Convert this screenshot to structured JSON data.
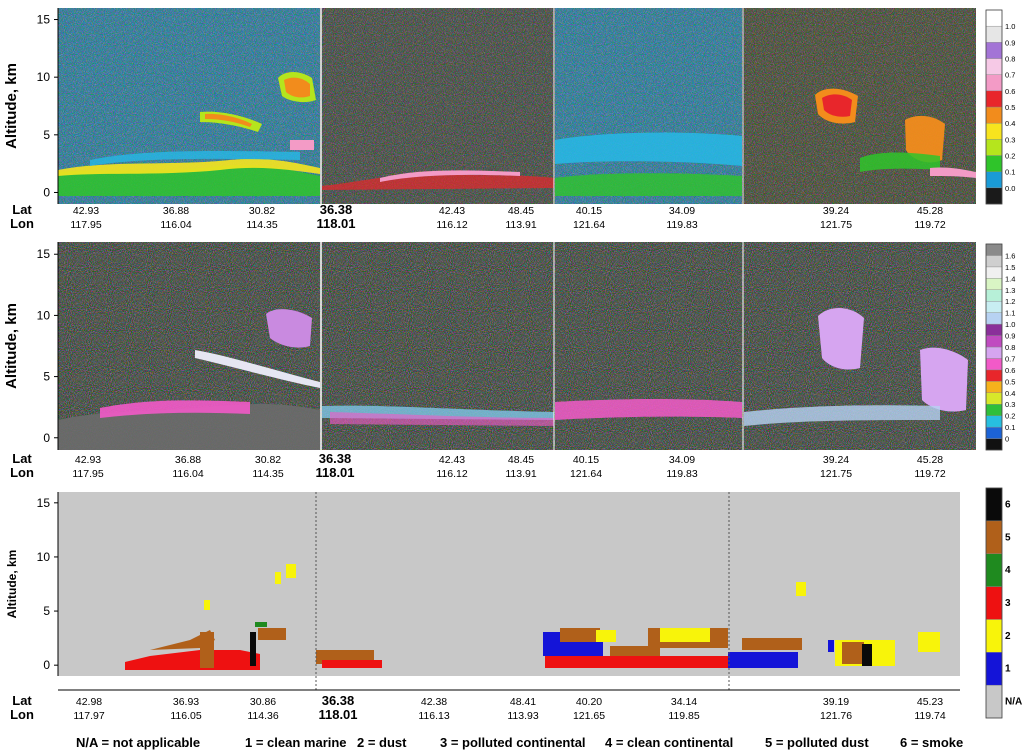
{
  "chart_data": [
    {
      "type": "heatmap",
      "panel": "attenuated backscatter",
      "ylabel": "Altitude, km",
      "ylim": [
        -1,
        16
      ],
      "yticks": [
        0,
        5,
        10,
        15
      ],
      "lat_label": "Lat",
      "lon_label": "Lon",
      "x_ticks": [
        {
          "lat": "42.93",
          "lon": "117.95"
        },
        {
          "lat": "36.88",
          "lon": "116.04"
        },
        {
          "lat": "30.82",
          "lon": "114.35"
        },
        {
          "lat": "36.38",
          "lon": "118.01",
          "emphasis": true
        },
        {
          "lat": "42.43",
          "lon": "116.12"
        },
        {
          "lat": "48.45",
          "lon": "113.91"
        },
        {
          "lat": "40.15",
          "lon": "121.64"
        },
        {
          "lat": "34.09",
          "lon": "119.83"
        },
        {
          "lat": "39.24",
          "lon": "121.75"
        },
        {
          "lat": "45.28",
          "lon": "119.72"
        }
      ],
      "colorbar": {
        "labels": [
          "0.0",
          "0.1",
          "0.2",
          "0.3",
          "0.4",
          "0.5",
          "0.6",
          "0.7",
          "0.8",
          "0.9",
          "1.0"
        ],
        "colors": [
          "#1a1a1a",
          "#1a9bd7",
          "#2fc42a",
          "#b5e51d",
          "#f7e41e",
          "#f28c1c",
          "#e8262b",
          "#f39bc6",
          "#f6c9e6",
          "#a374d6",
          "#e6e6e6",
          "#ffffff"
        ]
      },
      "legend_position": "right"
    },
    {
      "type": "heatmap",
      "panel": "depolarization ratio",
      "ylabel": "Altitude, km",
      "ylim": [
        -1,
        16
      ],
      "yticks": [
        0,
        5,
        10,
        15
      ],
      "lat_label": "Lat",
      "lon_label": "Lon",
      "x_ticks": [
        {
          "lat": "42.93",
          "lon": "117.95"
        },
        {
          "lat": "36.88",
          "lon": "116.04"
        },
        {
          "lat": "30.82",
          "lon": "114.35"
        },
        {
          "lat": "36.38",
          "lon": "118.01",
          "emphasis": true
        },
        {
          "lat": "42.43",
          "lon": "116.12"
        },
        {
          "lat": "48.45",
          "lon": "113.91"
        },
        {
          "lat": "40.15",
          "lon": "121.64"
        },
        {
          "lat": "34.09",
          "lon": "119.83"
        },
        {
          "lat": "39.24",
          "lon": "121.75"
        },
        {
          "lat": "45.28",
          "lon": "119.72"
        }
      ],
      "colorbar": {
        "labels": [
          "0",
          "0.1",
          "0.2",
          "0.3",
          "0.4",
          "0.5",
          "0.6",
          "0.7",
          "0.8",
          "0.9",
          "1.0",
          "1.1",
          "1.2",
          "1.3",
          "1.4",
          "1.5",
          "1.6"
        ],
        "colors": [
          "#111111",
          "#1c63d6",
          "#27bfe0",
          "#2fbf3a",
          "#d8e82a",
          "#f6b21c",
          "#e8262b",
          "#f25ac8",
          "#d6a5f0",
          "#c04bc0",
          "#8a2f9a",
          "#b7d2f2",
          "#c8eef2",
          "#b7f0d8",
          "#d9f5c4",
          "#f0f0f0",
          "#cfcfcf",
          "#8a8a8a"
        ]
      },
      "legend_position": "right"
    },
    {
      "type": "heatmap",
      "panel": "aerosol subtype",
      "ylabel": "Altitude, km",
      "ylim": [
        -1,
        16
      ],
      "yticks": [
        0,
        5,
        10,
        15
      ],
      "lat_label": "Lat",
      "lon_label": "Lon",
      "x_ticks": [
        {
          "lat": "42.98",
          "lon": "117.97"
        },
        {
          "lat": "36.93",
          "lon": "116.05"
        },
        {
          "lat": "30.86",
          "lon": "114.36"
        },
        {
          "lat": "36.38",
          "lon": "118.01",
          "emphasis": true
        },
        {
          "lat": "42.38",
          "lon": "116.13"
        },
        {
          "lat": "48.41",
          "lon": "113.93"
        },
        {
          "lat": "40.20",
          "lon": "121.65"
        },
        {
          "lat": "34.14",
          "lon": "119.85"
        },
        {
          "lat": "39.19",
          "lon": "121.76"
        },
        {
          "lat": "45.23",
          "lon": "119.74"
        }
      ],
      "colorbar": {
        "labels": [
          "N/A",
          "1",
          "2",
          "3",
          "4",
          "5",
          "6"
        ],
        "colors": [
          "#c8c8c8",
          "#1414d8",
          "#f8f40a",
          "#ee1111",
          "#1f8a1f",
          "#b0601a",
          "#0a0a0a"
        ]
      },
      "legend_position": "right",
      "legend_text": [
        "N/A = not applicable",
        "1 = clean marine",
        "2 = dust",
        "3 = polluted continental",
        "4 = clean continental",
        "5 = polluted dust",
        "6 = smoke"
      ]
    }
  ]
}
